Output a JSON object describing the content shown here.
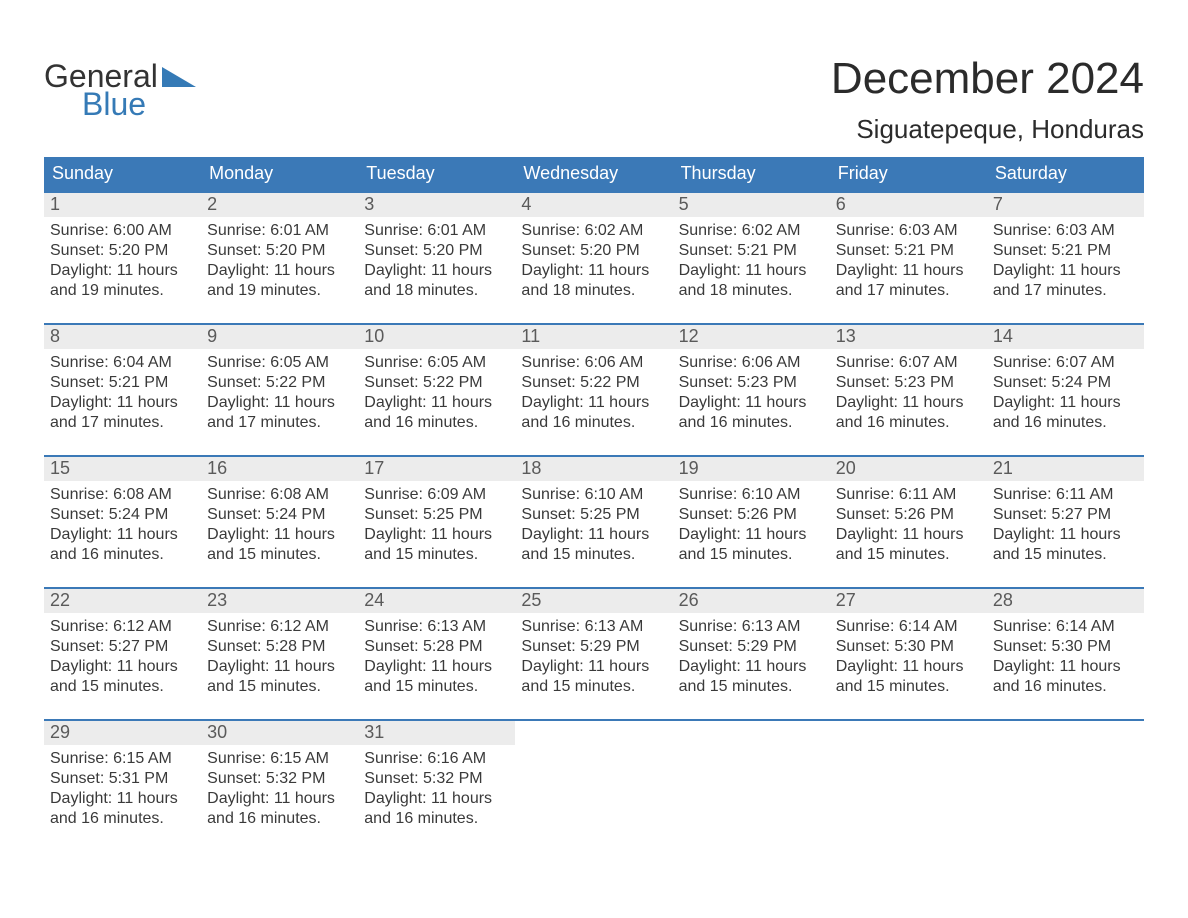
{
  "logo": {
    "word1": "General",
    "word2": "Blue",
    "triangle_color": "#357ab6",
    "text_color": "#333333"
  },
  "header": {
    "title": "December 2024",
    "location": "Siguatepeque, Honduras"
  },
  "colors": {
    "header_bg": "#3b79b7",
    "header_text": "#ffffff",
    "week_border": "#3b79b7",
    "daynum_bg": "#ececec",
    "daynum_text": "#5a5a5a",
    "body_text": "#3a3a3a",
    "page_bg": "#ffffff"
  },
  "fonts": {
    "family": "Arial",
    "title_size_pt": 33,
    "location_size_pt": 20,
    "dow_size_pt": 14,
    "daynum_size_pt": 14,
    "detail_size_pt": 12
  },
  "dow": [
    "Sunday",
    "Monday",
    "Tuesday",
    "Wednesday",
    "Thursday",
    "Friday",
    "Saturday"
  ],
  "weeks": [
    [
      {
        "n": "1",
        "sunrise": "Sunrise: 6:00 AM",
        "sunset": "Sunset: 5:20 PM",
        "d1": "Daylight: 11 hours",
        "d2": "and 19 minutes."
      },
      {
        "n": "2",
        "sunrise": "Sunrise: 6:01 AM",
        "sunset": "Sunset: 5:20 PM",
        "d1": "Daylight: 11 hours",
        "d2": "and 19 minutes."
      },
      {
        "n": "3",
        "sunrise": "Sunrise: 6:01 AM",
        "sunset": "Sunset: 5:20 PM",
        "d1": "Daylight: 11 hours",
        "d2": "and 18 minutes."
      },
      {
        "n": "4",
        "sunrise": "Sunrise: 6:02 AM",
        "sunset": "Sunset: 5:20 PM",
        "d1": "Daylight: 11 hours",
        "d2": "and 18 minutes."
      },
      {
        "n": "5",
        "sunrise": "Sunrise: 6:02 AM",
        "sunset": "Sunset: 5:21 PM",
        "d1": "Daylight: 11 hours",
        "d2": "and 18 minutes."
      },
      {
        "n": "6",
        "sunrise": "Sunrise: 6:03 AM",
        "sunset": "Sunset: 5:21 PM",
        "d1": "Daylight: 11 hours",
        "d2": "and 17 minutes."
      },
      {
        "n": "7",
        "sunrise": "Sunrise: 6:03 AM",
        "sunset": "Sunset: 5:21 PM",
        "d1": "Daylight: 11 hours",
        "d2": "and 17 minutes."
      }
    ],
    [
      {
        "n": "8",
        "sunrise": "Sunrise: 6:04 AM",
        "sunset": "Sunset: 5:21 PM",
        "d1": "Daylight: 11 hours",
        "d2": "and 17 minutes."
      },
      {
        "n": "9",
        "sunrise": "Sunrise: 6:05 AM",
        "sunset": "Sunset: 5:22 PM",
        "d1": "Daylight: 11 hours",
        "d2": "and 17 minutes."
      },
      {
        "n": "10",
        "sunrise": "Sunrise: 6:05 AM",
        "sunset": "Sunset: 5:22 PM",
        "d1": "Daylight: 11 hours",
        "d2": "and 16 minutes."
      },
      {
        "n": "11",
        "sunrise": "Sunrise: 6:06 AM",
        "sunset": "Sunset: 5:22 PM",
        "d1": "Daylight: 11 hours",
        "d2": "and 16 minutes."
      },
      {
        "n": "12",
        "sunrise": "Sunrise: 6:06 AM",
        "sunset": "Sunset: 5:23 PM",
        "d1": "Daylight: 11 hours",
        "d2": "and 16 minutes."
      },
      {
        "n": "13",
        "sunrise": "Sunrise: 6:07 AM",
        "sunset": "Sunset: 5:23 PM",
        "d1": "Daylight: 11 hours",
        "d2": "and 16 minutes."
      },
      {
        "n": "14",
        "sunrise": "Sunrise: 6:07 AM",
        "sunset": "Sunset: 5:24 PM",
        "d1": "Daylight: 11 hours",
        "d2": "and 16 minutes."
      }
    ],
    [
      {
        "n": "15",
        "sunrise": "Sunrise: 6:08 AM",
        "sunset": "Sunset: 5:24 PM",
        "d1": "Daylight: 11 hours",
        "d2": "and 16 minutes."
      },
      {
        "n": "16",
        "sunrise": "Sunrise: 6:08 AM",
        "sunset": "Sunset: 5:24 PM",
        "d1": "Daylight: 11 hours",
        "d2": "and 15 minutes."
      },
      {
        "n": "17",
        "sunrise": "Sunrise: 6:09 AM",
        "sunset": "Sunset: 5:25 PM",
        "d1": "Daylight: 11 hours",
        "d2": "and 15 minutes."
      },
      {
        "n": "18",
        "sunrise": "Sunrise: 6:10 AM",
        "sunset": "Sunset: 5:25 PM",
        "d1": "Daylight: 11 hours",
        "d2": "and 15 minutes."
      },
      {
        "n": "19",
        "sunrise": "Sunrise: 6:10 AM",
        "sunset": "Sunset: 5:26 PM",
        "d1": "Daylight: 11 hours",
        "d2": "and 15 minutes."
      },
      {
        "n": "20",
        "sunrise": "Sunrise: 6:11 AM",
        "sunset": "Sunset: 5:26 PM",
        "d1": "Daylight: 11 hours",
        "d2": "and 15 minutes."
      },
      {
        "n": "21",
        "sunrise": "Sunrise: 6:11 AM",
        "sunset": "Sunset: 5:27 PM",
        "d1": "Daylight: 11 hours",
        "d2": "and 15 minutes."
      }
    ],
    [
      {
        "n": "22",
        "sunrise": "Sunrise: 6:12 AM",
        "sunset": "Sunset: 5:27 PM",
        "d1": "Daylight: 11 hours",
        "d2": "and 15 minutes."
      },
      {
        "n": "23",
        "sunrise": "Sunrise: 6:12 AM",
        "sunset": "Sunset: 5:28 PM",
        "d1": "Daylight: 11 hours",
        "d2": "and 15 minutes."
      },
      {
        "n": "24",
        "sunrise": "Sunrise: 6:13 AM",
        "sunset": "Sunset: 5:28 PM",
        "d1": "Daylight: 11 hours",
        "d2": "and 15 minutes."
      },
      {
        "n": "25",
        "sunrise": "Sunrise: 6:13 AM",
        "sunset": "Sunset: 5:29 PM",
        "d1": "Daylight: 11 hours",
        "d2": "and 15 minutes."
      },
      {
        "n": "26",
        "sunrise": "Sunrise: 6:13 AM",
        "sunset": "Sunset: 5:29 PM",
        "d1": "Daylight: 11 hours",
        "d2": "and 15 minutes."
      },
      {
        "n": "27",
        "sunrise": "Sunrise: 6:14 AM",
        "sunset": "Sunset: 5:30 PM",
        "d1": "Daylight: 11 hours",
        "d2": "and 15 minutes."
      },
      {
        "n": "28",
        "sunrise": "Sunrise: 6:14 AM",
        "sunset": "Sunset: 5:30 PM",
        "d1": "Daylight: 11 hours",
        "d2": "and 16 minutes."
      }
    ],
    [
      {
        "n": "29",
        "sunrise": "Sunrise: 6:15 AM",
        "sunset": "Sunset: 5:31 PM",
        "d1": "Daylight: 11 hours",
        "d2": "and 16 minutes."
      },
      {
        "n": "30",
        "sunrise": "Sunrise: 6:15 AM",
        "sunset": "Sunset: 5:32 PM",
        "d1": "Daylight: 11 hours",
        "d2": "and 16 minutes."
      },
      {
        "n": "31",
        "sunrise": "Sunrise: 6:16 AM",
        "sunset": "Sunset: 5:32 PM",
        "d1": "Daylight: 11 hours",
        "d2": "and 16 minutes."
      },
      null,
      null,
      null,
      null
    ]
  ]
}
